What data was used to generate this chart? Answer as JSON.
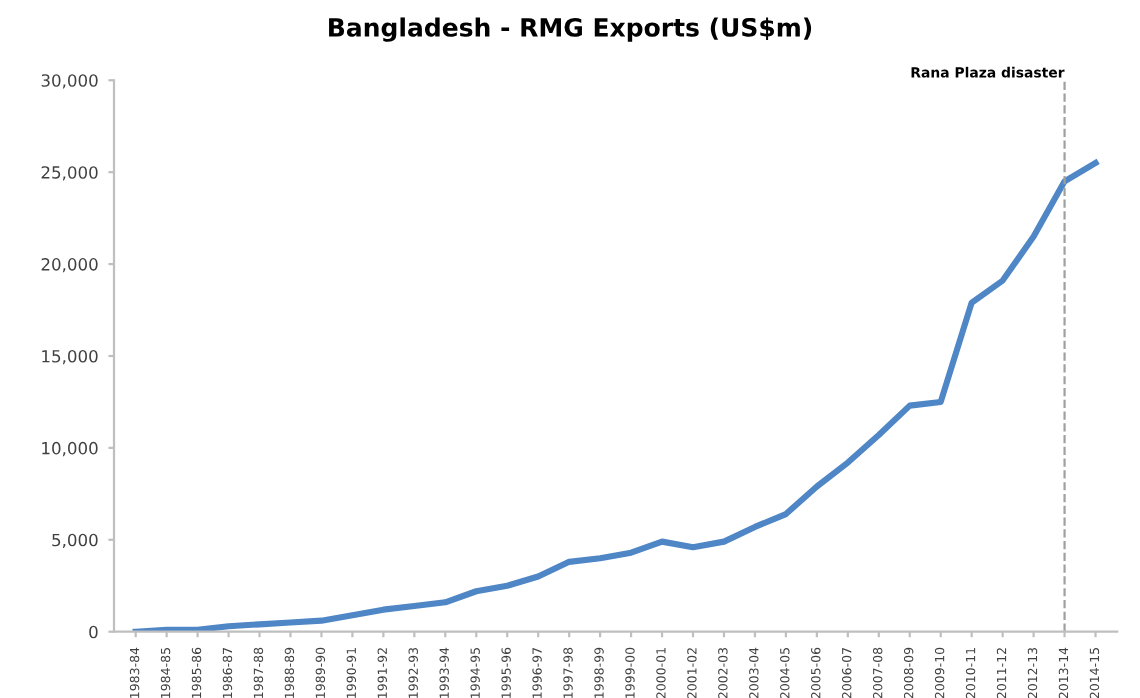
{
  "chart_data": {
    "type": "line",
    "title": "Bangladesh - RMG Exports (US$m)",
    "categories": [
      "1983-84",
      "1984-85",
      "1985-86",
      "1986-87",
      "1987-88",
      "1988-89",
      "1989-90",
      "1990-91",
      "1991-92",
      "1992-93",
      "1993-94",
      "1994-95",
      "1995-96",
      "1996-97",
      "1997-98",
      "1998-99",
      "1999-00",
      "2000-01",
      "2001-02",
      "2002-03",
      "2003-04",
      "2004-05",
      "2005-06",
      "2006-07",
      "2007-08",
      "2008-09",
      "2009-10",
      "2010-11",
      "2011-12",
      "2012-13",
      "2013-14",
      "2014-15"
    ],
    "series": [
      {
        "color": "#4f86c6",
        "values": [
          0,
          100,
          100,
          300,
          400,
          500,
          600,
          900,
          1200,
          1400,
          1600,
          2200,
          2500,
          3000,
          3800,
          4000,
          4300,
          4900,
          4600,
          4900,
          5700,
          6400,
          7900,
          9200,
          10700,
          12300,
          12500,
          17900,
          19100,
          21500,
          24500,
          25500
        ]
      }
    ],
    "ylim": [
      0,
      30000
    ],
    "yticks": [
      0,
      {
        "value": 5000,
        "label": "5,000"
      },
      {
        "value": 10000,
        "label": "10,000"
      },
      {
        "value": 15000,
        "label": "15,000"
      },
      {
        "value": 20000,
        "label": "20,000"
      },
      {
        "value": 25000,
        "label": "25,000"
      },
      {
        "value": 30000,
        "label": "30,000"
      }
    ],
    "ref_lines": [
      {
        "axis": "x",
        "value": "2013-14",
        "label": "Rana Plaza disaster",
        "color": "#a0a0a0",
        "line_style": "dashed"
      }
    ],
    "grid": false,
    "legend": false,
    "marker": "none",
    "line_style": "solid"
  }
}
